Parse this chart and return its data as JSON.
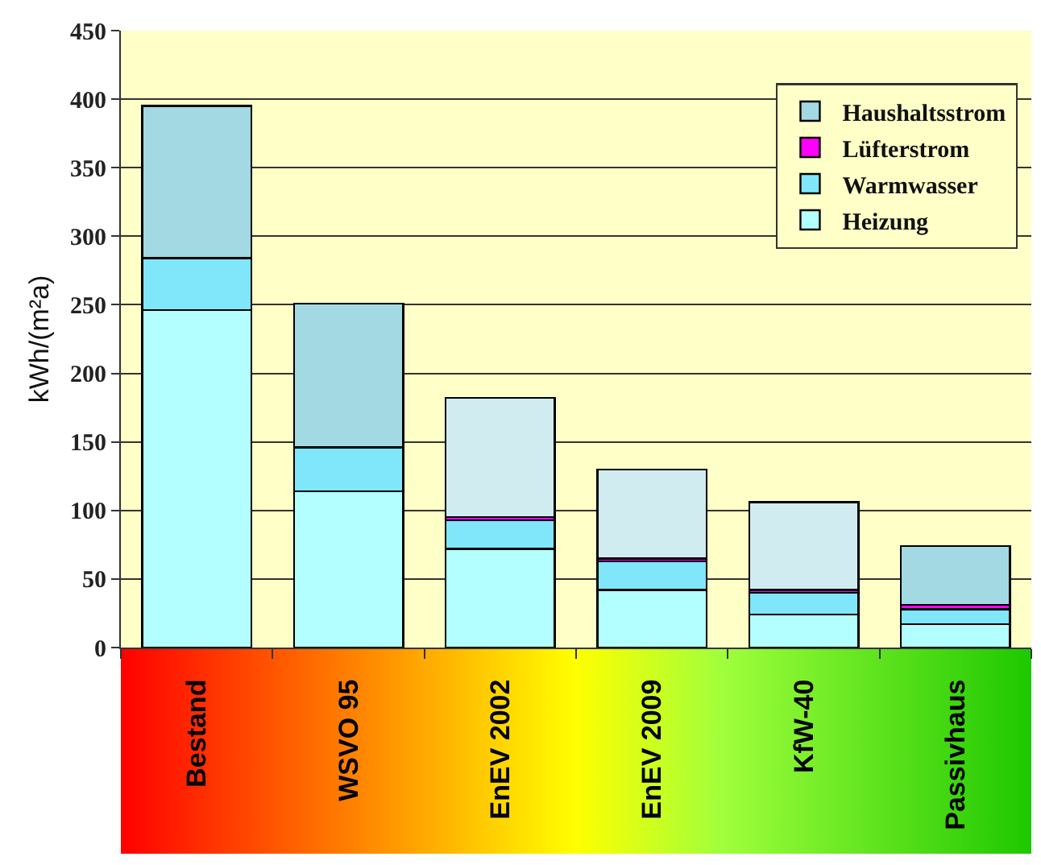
{
  "chart_data": {
    "type": "bar",
    "stacked": true,
    "ylabel": "kWh/(m²a)",
    "categories": [
      "Bestand",
      "WSVO 95",
      "EnEV 2002",
      "EnEV 2009",
      "KfW-40",
      "Passivhaus"
    ],
    "series": [
      {
        "name": "Heizung",
        "color": "#b3ffff",
        "values": [
          246,
          114,
          72,
          42,
          24,
          17
        ]
      },
      {
        "name": "Warmwasser",
        "color": "#80e6fa",
        "values": [
          38,
          32,
          21,
          21,
          16,
          11
        ]
      },
      {
        "name": "Lüfterstrom",
        "color": "#ff00ff",
        "values": [
          null,
          null,
          2,
          2,
          2,
          3
        ]
      },
      {
        "name": "Haushaltsstrom",
        "color": "#a2d9e3",
        "colors": [
          "#a2d9e3",
          "#a2d9e3",
          "#d0ecf0",
          "#d0ecf0",
          "#d0ecf0",
          "#a2d9e3"
        ],
        "values": [
          111,
          105,
          87,
          65,
          64,
          43
        ]
      }
    ],
    "ylim": [
      0,
      450
    ],
    "yticks": [
      0,
      50,
      100,
      150,
      200,
      250,
      300,
      350,
      400,
      450
    ],
    "grid": "y",
    "legend": "top right"
  }
}
